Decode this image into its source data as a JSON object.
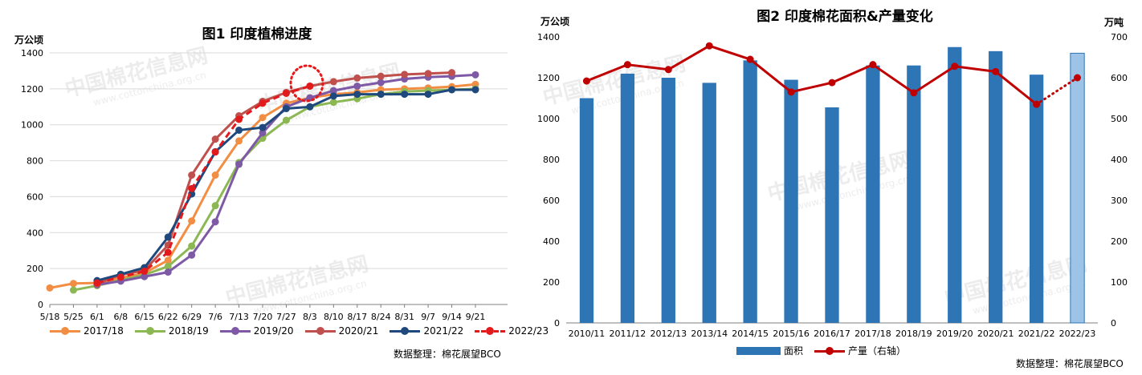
{
  "left_chart": {
    "title": "图1 印度植棉进度",
    "ylabel": "万公顷",
    "source": "数据整理：棉花展望BCO",
    "watermarks": [
      "中国棉花信息网",
      "www.cottonchina.org.cn"
    ]
  },
  "right_chart": {
    "title": "图2 印度棉花面积&产量变化",
    "ylabel_left": "万公顷",
    "ylabel_right": "万吨",
    "source": "数据整理：棉花展望BCO",
    "legend_area": "面积",
    "legend_output": "产量（右轴）"
  },
  "chart_data": [
    {
      "type": "line",
      "title": "图1 印度植棉进度",
      "ylabel": "万公顷",
      "ylim": [
        0,
        1400
      ],
      "yticks": [
        0,
        200,
        400,
        600,
        800,
        1000,
        1200,
        1400
      ],
      "x": [
        "5/18",
        "5/25",
        "6/1",
        "6/8",
        "6/15",
        "6/22",
        "6/29",
        "7/6",
        "7/13",
        "7/20",
        "7/27",
        "8/3",
        "8/10",
        "8/17",
        "8/24",
        "8/31",
        "9/7",
        "9/14",
        "9/21"
      ],
      "grid": true,
      "legend": "bottom",
      "series": [
        {
          "name": "2017/18",
          "color": "#f28e43",
          "dashed": false,
          "values": [
            92,
            117,
            120,
            147,
            175,
            246,
            465,
            720,
            910,
            1040,
            1120,
            1150,
            1170,
            1180,
            1195,
            1200,
            1205,
            1212,
            1225
          ]
        },
        {
          "name": "2018/19",
          "color": "#8cb853",
          "dashed": false,
          "values": [
            null,
            80,
            105,
            135,
            165,
            212,
            325,
            550,
            790,
            925,
            1025,
            1100,
            1125,
            1145,
            1170,
            1185,
            1190,
            1195,
            1200
          ]
        },
        {
          "name": "2019/20",
          "color": "#7e5aa6",
          "dashed": false,
          "values": [
            null,
            null,
            110,
            130,
            155,
            180,
            275,
            460,
            780,
            955,
            1100,
            1150,
            1190,
            1215,
            1235,
            1255,
            1265,
            1270,
            1278
          ]
        },
        {
          "name": "2020/21",
          "color": "#c0504d",
          "dashed": false,
          "values": [
            null,
            null,
            115,
            165,
            190,
            330,
            720,
            920,
            1050,
            1130,
            1180,
            1215,
            1240,
            1260,
            1270,
            1280,
            1285,
            1290,
            null
          ]
        },
        {
          "name": "2021/22",
          "color": "#1f497d",
          "dashed": false,
          "values": [
            null,
            null,
            133,
            168,
            205,
            375,
            615,
            850,
            970,
            985,
            1090,
            1100,
            1160,
            1170,
            1170,
            1170,
            1170,
            1195,
            1195
          ]
        },
        {
          "name": "2022/23",
          "color": "#e31a1c",
          "dashed": true,
          "values": [
            null,
            null,
            120,
            152,
            185,
            290,
            645,
            848,
            1030,
            1120,
            1175,
            1215,
            null,
            null,
            null,
            null,
            null,
            null,
            null
          ]
        }
      ]
    },
    {
      "type": "bar",
      "title": "图2 印度棉花面积&产量变化",
      "categories": [
        "2010/11",
        "2011/12",
        "2012/13",
        "2013/14",
        "2014/15",
        "2015/16",
        "2016/17",
        "2017/18",
        "2018/19",
        "2019/20",
        "2020/21",
        "2021/22",
        "2022/23"
      ],
      "ylabel_left": "万公顷",
      "ylabel_right": "万吨",
      "ylim_left": [
        0,
        1400
      ],
      "ylim_right": [
        0,
        700
      ],
      "yticks_left": [
        0,
        200,
        400,
        600,
        800,
        1000,
        1200,
        1400
      ],
      "yticks_right": [
        0,
        100,
        200,
        300,
        400,
        500,
        600,
        700
      ],
      "legend": "bottom",
      "series": [
        {
          "name": "面积",
          "type": "bar",
          "axis": "left",
          "color": "#2e75b6",
          "highlight_last_color": "#9dc3e6",
          "values": [
            1100,
            1220,
            1200,
            1175,
            1285,
            1190,
            1055,
            1260,
            1260,
            1350,
            1330,
            1215,
            1320
          ]
        },
        {
          "name": "产量（右轴）",
          "type": "line",
          "axis": "right",
          "color": "#c00000",
          "last_segment_dotted": true,
          "values": [
            592,
            632,
            620,
            678,
            645,
            565,
            588,
            632,
            563,
            628,
            615,
            535,
            600
          ]
        }
      ]
    }
  ]
}
